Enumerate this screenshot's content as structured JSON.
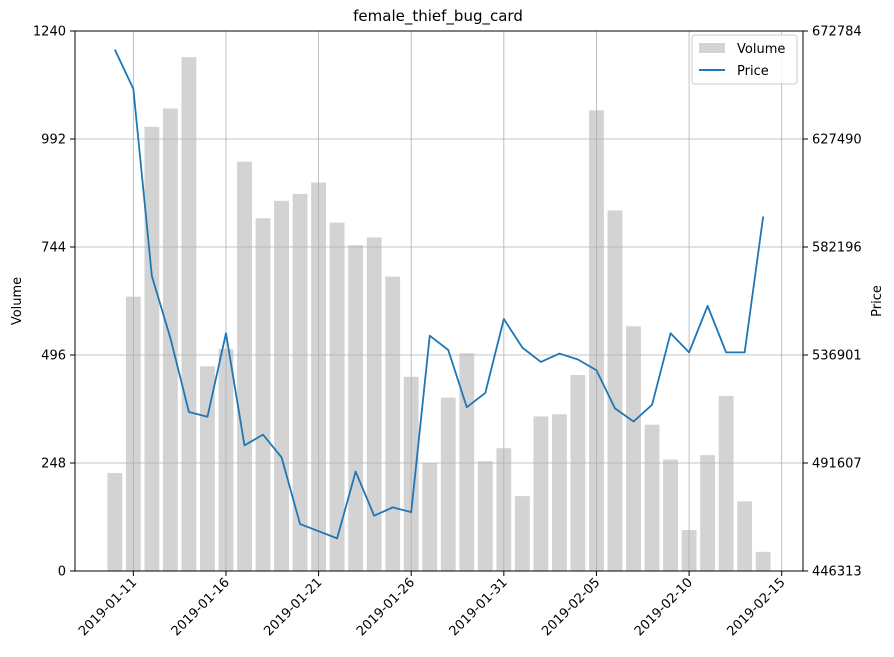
{
  "chart_data": {
    "type": "bar+line",
    "title": "female_thief_bug_card",
    "xlabel": "",
    "ylabel_left": "Volume",
    "ylabel_right": "Price",
    "x_tick_labels": [
      "2019-01-11",
      "2019-01-16",
      "2019-01-21",
      "2019-01-26",
      "2019-01-31",
      "2019-02-05",
      "2019-02-10",
      "2019-02-15"
    ],
    "ylim_left": [
      0,
      1240
    ],
    "yticks_left": [
      "0",
      "248",
      "496",
      "744",
      "992",
      "1240"
    ],
    "ylim_right": [
      446313,
      672784
    ],
    "yticks_right": [
      "446313",
      "491607",
      "536901",
      "582196",
      "627490",
      "672784"
    ],
    "dates": [
      "2019-01-10",
      "2019-01-11",
      "2019-01-12",
      "2019-01-13",
      "2019-01-14",
      "2019-01-15",
      "2019-01-16",
      "2019-01-17",
      "2019-01-18",
      "2019-01-19",
      "2019-01-20",
      "2019-01-21",
      "2019-01-22",
      "2019-01-23",
      "2019-01-24",
      "2019-01-25",
      "2019-01-26",
      "2019-01-27",
      "2019-01-28",
      "2019-01-29",
      "2019-01-30",
      "2019-01-31",
      "2019-02-01",
      "2019-02-02",
      "2019-02-03",
      "2019-02-04",
      "2019-02-05",
      "2019-02-06",
      "2019-02-07",
      "2019-02-08",
      "2019-02-09",
      "2019-02-10",
      "2019-02-11",
      "2019-02-12",
      "2019-02-13",
      "2019-02-14"
    ],
    "series": [
      {
        "name": "Volume",
        "kind": "bar",
        "color": "#d3d3d3",
        "values": [
          225,
          630,
          1020,
          1062,
          1180,
          470,
          510,
          940,
          810,
          850,
          866,
          892,
          800,
          748,
          766,
          676,
          446,
          248,
          398,
          500,
          252,
          282,
          172,
          355,
          360,
          450,
          1058,
          828,
          562,
          336,
          256,
          94,
          266,
          402,
          160,
          44
        ]
      },
      {
        "name": "Price",
        "kind": "line",
        "color": "#1f77b4",
        "values": [
          665000,
          648500,
          570000,
          544000,
          513000,
          511000,
          546000,
          499000,
          503500,
          494000,
          466000,
          463000,
          460000,
          488000,
          469500,
          473000,
          471000,
          545000,
          539000,
          515000,
          521000,
          552000,
          540000,
          534000,
          537500,
          535000,
          530500,
          514500,
          509000,
          516000,
          546000,
          538000,
          557500,
          538000,
          538000,
          595000
        ]
      }
    ],
    "legend": {
      "position": "top-right",
      "entries": [
        "Volume",
        "Price"
      ]
    },
    "grid": true
  }
}
